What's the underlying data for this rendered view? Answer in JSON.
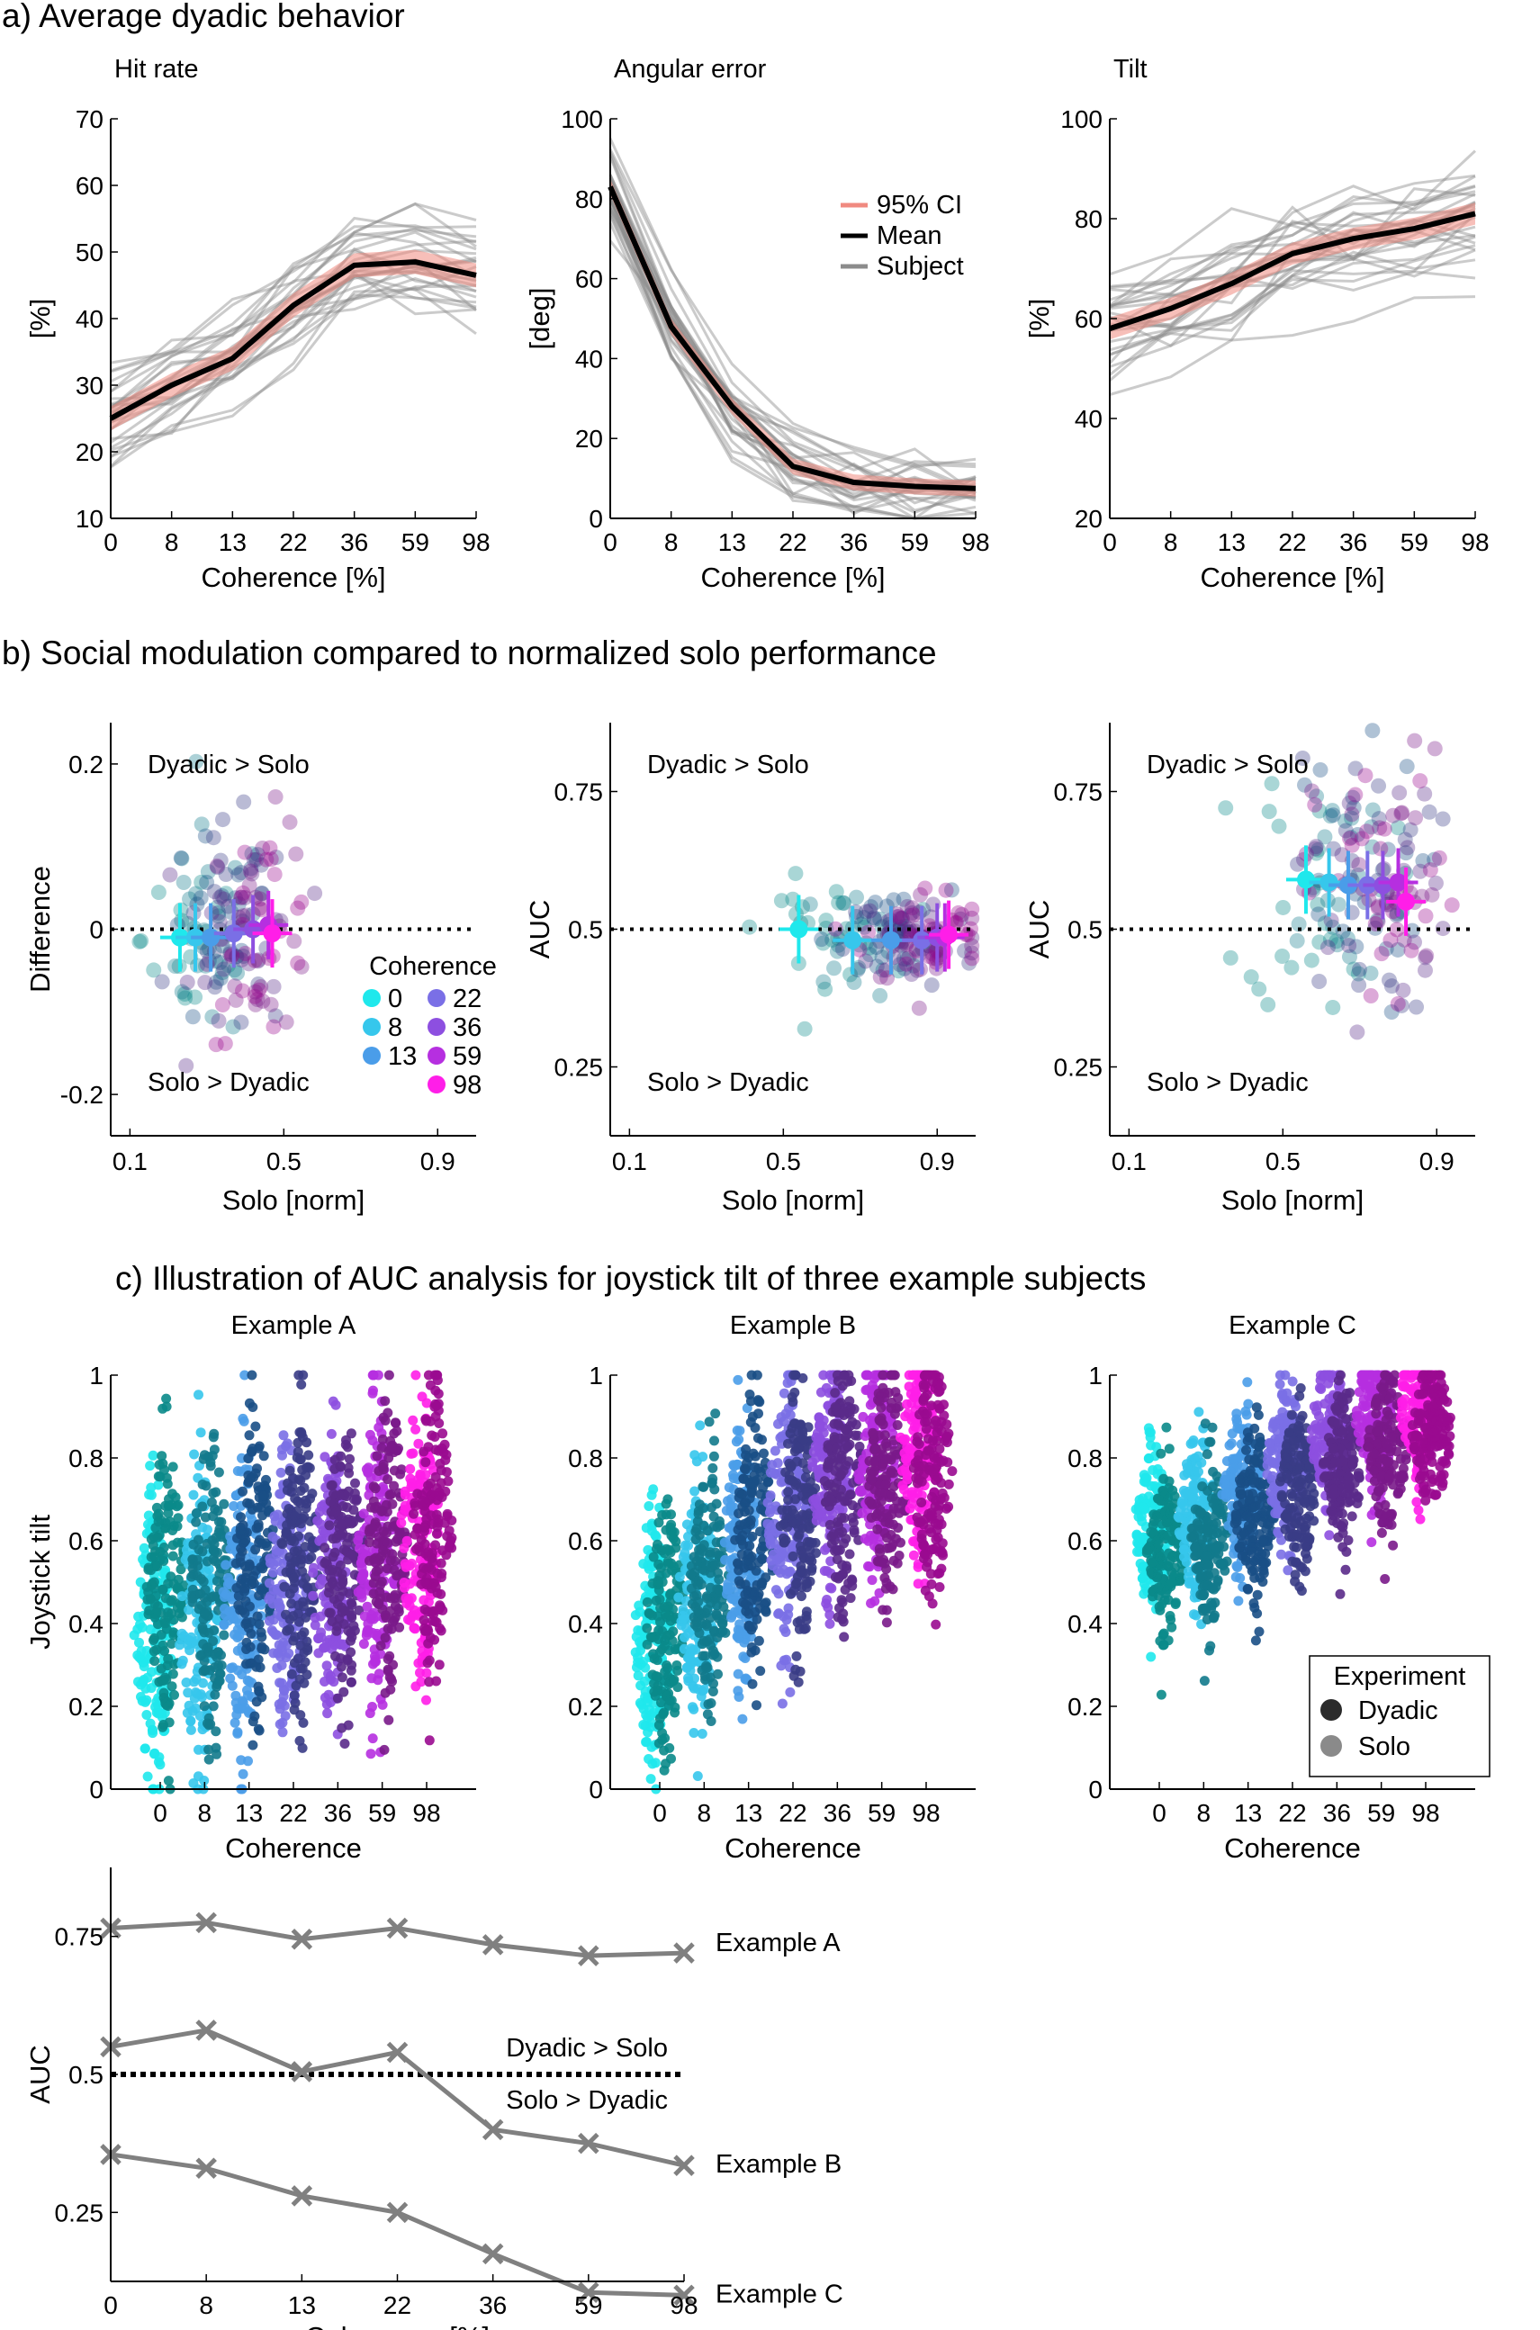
{
  "sections": {
    "a": "a) Average dyadic behavior",
    "b": "b) Social modulation compared to normalized solo performance",
    "c": "c) Illustration of AUC analysis for joystick tilt of three example subjects"
  },
  "colors": {
    "coherence": [
      "#1fe8ec",
      "#36c7ec",
      "#4a9de9",
      "#7a6fe6",
      "#8d4fe0",
      "#b62fe0",
      "#ff1ee8"
    ],
    "coherence_dark": [
      "#0a8a8a",
      "#127a8c",
      "#1a4f86",
      "#3a3c86",
      "#5a2a8a",
      "#7a1a8a",
      "#9a0a90"
    ],
    "mean": "#000000",
    "ci": "#f08a80",
    "subject": "#8c8c8c",
    "auc_line": "#808080"
  },
  "chart_data": [
    {
      "id": "a1",
      "type": "line",
      "title": "Hit rate",
      "xlabel": "Coherence [%]",
      "ylabel": "[%]",
      "categories": [
        "0",
        "8",
        "13",
        "22",
        "36",
        "59",
        "98"
      ],
      "ylim": [
        10,
        70
      ],
      "yticks": [
        "10",
        "20",
        "30",
        "40",
        "50",
        "60",
        "70"
      ],
      "series": [
        {
          "name": "Mean",
          "values": [
            25,
            30,
            34,
            42,
            48,
            48.5,
            46.5
          ]
        }
      ],
      "ci_halfwidth": 1.8,
      "subjects_count": 28
    },
    {
      "id": "a2",
      "type": "line",
      "title": "Angular error",
      "xlabel": "Coherence [%]",
      "ylabel": "[deg]",
      "categories": [
        "0",
        "8",
        "13",
        "22",
        "36",
        "59",
        "98"
      ],
      "ylim": [
        0,
        100
      ],
      "yticks": [
        "0",
        "20",
        "40",
        "60",
        "80",
        "100"
      ],
      "series": [
        {
          "name": "Mean",
          "values": [
            83,
            48,
            28,
            13,
            9,
            8,
            7.5
          ]
        }
      ],
      "ci_halfwidth": 2,
      "legend": [
        "95% CI",
        "Mean",
        "Subject"
      ],
      "subjects_count": 28
    },
    {
      "id": "a3",
      "type": "line",
      "title": "Tilt",
      "xlabel": "Coherence [%]",
      "ylabel": "[%]",
      "categories": [
        "0",
        "8",
        "13",
        "22",
        "36",
        "59",
        "98"
      ],
      "ylim": [
        20,
        100
      ],
      "yticks": [
        "20",
        "40",
        "60",
        "80",
        "100"
      ],
      "series": [
        {
          "name": "Mean",
          "values": [
            58,
            62,
            67,
            73,
            76,
            78,
            81
          ]
        }
      ],
      "ci_halfwidth": 2.2,
      "subjects_count": 28
    },
    {
      "id": "b1",
      "type": "scatter",
      "xlabel": "Solo [norm]",
      "ylabel": "Difference",
      "xlim": [
        0.05,
        1.0
      ],
      "ylim": [
        -0.25,
        0.25
      ],
      "xticks": [
        "0.1",
        "0.5",
        "0.9"
      ],
      "yticks": [
        "-0.2",
        "0",
        "0.2"
      ],
      "reference_y": 0,
      "annotations": {
        "top": "Dyadic > Solo",
        "bottom": "Solo > Dyadic"
      },
      "legend_title": "Coherence",
      "legend_labels": [
        "0",
        "8",
        "13",
        "22",
        "36",
        "59",
        "98"
      ],
      "means": [
        {
          "x": 0.23,
          "y": -0.01
        },
        {
          "x": 0.27,
          "y": -0.01
        },
        {
          "x": 0.31,
          "y": -0.01
        },
        {
          "x": 0.37,
          "y": -0.005
        },
        {
          "x": 0.42,
          "y": 0.0
        },
        {
          "x": 0.46,
          "y": 0.005
        },
        {
          "x": 0.47,
          "y": -0.005
        }
      ],
      "points_center": {
        "x": 0.38,
        "y": 0.0
      },
      "points_spread": {
        "x": 0.13,
        "y": 0.065
      }
    },
    {
      "id": "b2",
      "type": "scatter",
      "xlabel": "Solo [norm]",
      "ylabel": "AUC",
      "xlim": [
        0.05,
        1.0
      ],
      "ylim": [
        0.125,
        0.875
      ],
      "xticks": [
        "0.1",
        "0.5",
        "0.9"
      ],
      "yticks": [
        "0.25",
        "0.5",
        "0.75"
      ],
      "reference_y": 0.5,
      "annotations": {
        "top": "Dyadic > Solo",
        "bottom": "Solo > Dyadic"
      },
      "means": [
        {
          "x": 0.54,
          "y": 0.5
        },
        {
          "x": 0.68,
          "y": 0.48
        },
        {
          "x": 0.78,
          "y": 0.48
        },
        {
          "x": 0.86,
          "y": 0.48
        },
        {
          "x": 0.9,
          "y": 0.485
        },
        {
          "x": 0.92,
          "y": 0.485
        },
        {
          "x": 0.93,
          "y": 0.49
        }
      ],
      "points_center": {
        "x": 0.75,
        "y": 0.49
      },
      "points_spread": {
        "x": 0.15,
        "y": 0.045
      }
    },
    {
      "id": "b3",
      "type": "scatter",
      "xlabel": "Solo [norm]",
      "ylabel": "AUC",
      "xlim": [
        0.05,
        1.0
      ],
      "ylim": [
        0.125,
        0.875
      ],
      "xticks": [
        "0.1",
        "0.5",
        "0.9"
      ],
      "yticks": [
        "0.25",
        "0.5",
        "0.75"
      ],
      "reference_y": 0.5,
      "annotations": {
        "top": "Dyadic > Solo",
        "bottom": "Solo > Dyadic"
      },
      "means": [
        {
          "x": 0.56,
          "y": 0.59
        },
        {
          "x": 0.62,
          "y": 0.585
        },
        {
          "x": 0.67,
          "y": 0.58
        },
        {
          "x": 0.72,
          "y": 0.58
        },
        {
          "x": 0.76,
          "y": 0.58
        },
        {
          "x": 0.8,
          "y": 0.585
        },
        {
          "x": 0.82,
          "y": 0.55
        }
      ],
      "points_center": {
        "x": 0.68,
        "y": 0.56
      },
      "points_spread": {
        "x": 0.17,
        "y": 0.12
      }
    },
    {
      "id": "c1",
      "type": "scatter",
      "title": "Example A",
      "xlabel": "Coherence",
      "ylabel": "Joystick tilt",
      "categories": [
        "0",
        "8",
        "13",
        "22",
        "36",
        "59",
        "98"
      ],
      "ylim": [
        0,
        1
      ],
      "yticks": [
        "0",
        "0.2",
        "0.4",
        "0.6",
        "0.8",
        "1"
      ],
      "dyadic_center": [
        0.5,
        0.52,
        0.54,
        0.55,
        0.56,
        0.6,
        0.64
      ],
      "solo_center": [
        0.36,
        0.4,
        0.45,
        0.48,
        0.5,
        0.54,
        0.6
      ],
      "spread": 0.17
    },
    {
      "id": "c2",
      "type": "scatter",
      "title": "Example B",
      "xlabel": "Coherence",
      "ylabel": "",
      "categories": [
        "0",
        "8",
        "13",
        "22",
        "36",
        "59",
        "98"
      ],
      "ylim": [
        0,
        1
      ],
      "yticks": [
        "0",
        "0.2",
        "0.4",
        "0.6",
        "0.8",
        "1"
      ],
      "dyadic_center": [
        0.4,
        0.5,
        0.6,
        0.66,
        0.73,
        0.75,
        0.76
      ],
      "solo_center": [
        0.36,
        0.46,
        0.58,
        0.66,
        0.76,
        0.8,
        0.82
      ],
      "spread": 0.15
    },
    {
      "id": "c3",
      "type": "scatter",
      "title": "Example C",
      "xlabel": "Coherence",
      "ylabel": "",
      "categories": [
        "0",
        "8",
        "13",
        "22",
        "36",
        "59",
        "98"
      ],
      "ylim": [
        0,
        1
      ],
      "yticks": [
        "0",
        "0.2",
        "0.4",
        "0.6",
        "0.8",
        "1"
      ],
      "dyadic_center": [
        0.56,
        0.6,
        0.66,
        0.72,
        0.78,
        0.82,
        0.86
      ],
      "solo_center": [
        0.62,
        0.66,
        0.72,
        0.78,
        0.86,
        0.9,
        0.93
      ],
      "spread": 0.1,
      "legend_title": "Experiment",
      "legend_labels": [
        "Dyadic",
        "Solo"
      ],
      "legend_colors": [
        "#2b2b2b",
        "#8a8a8a"
      ]
    },
    {
      "id": "c4",
      "type": "line",
      "xlabel": "Coherence [%]",
      "ylabel": "AUC",
      "categories": [
        "0",
        "8",
        "13",
        "22",
        "36",
        "59",
        "98"
      ],
      "ylim": [
        0.125,
        0.875
      ],
      "yticks": [
        "0.25",
        "0.5",
        "0.75"
      ],
      "reference_y": 0.5,
      "annotations": {
        "top": "Dyadic > Solo",
        "bottom": "Solo > Dyadic"
      },
      "series": [
        {
          "name": "Example A",
          "values": [
            0.765,
            0.775,
            0.745,
            0.765,
            0.735,
            0.715,
            0.72
          ]
        },
        {
          "name": "Example B",
          "values": [
            0.55,
            0.58,
            0.505,
            0.54,
            0.4,
            0.375,
            0.335
          ]
        },
        {
          "name": "Example C",
          "values": [
            0.355,
            0.33,
            0.28,
            0.25,
            0.175,
            0.105,
            0.1
          ]
        }
      ]
    }
  ]
}
